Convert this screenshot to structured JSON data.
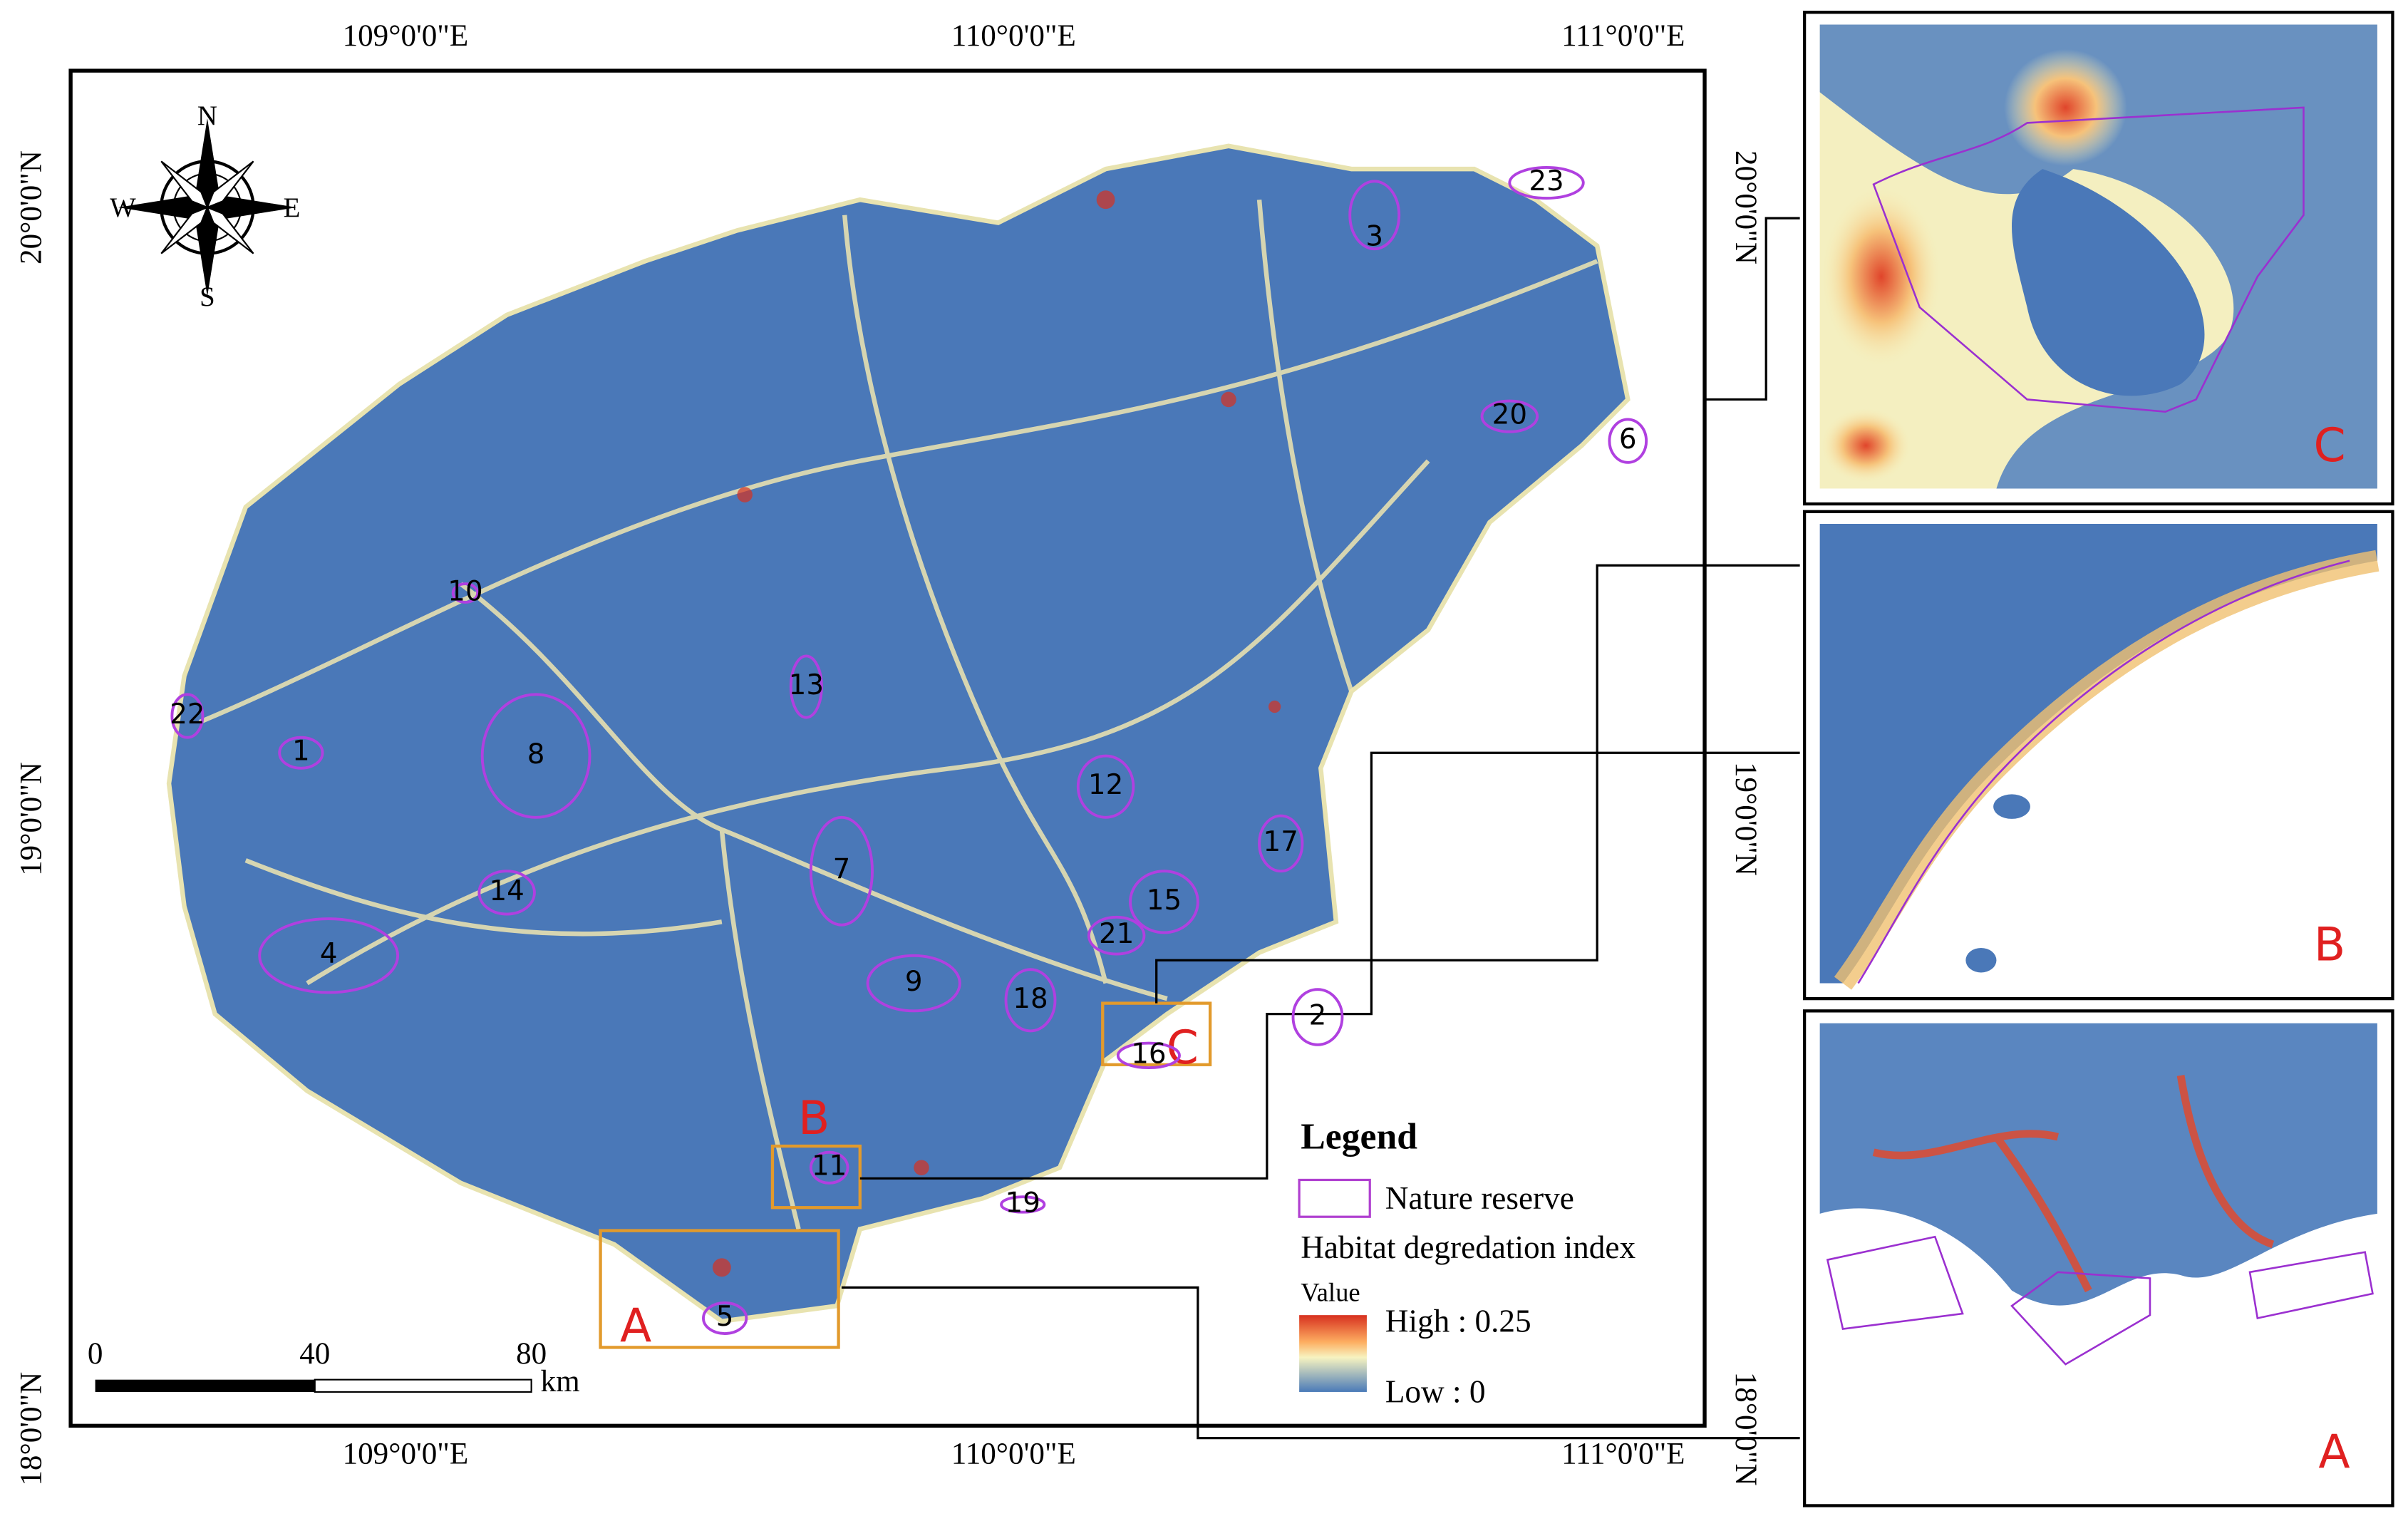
{
  "map": {
    "top_axis": [
      "109°0'0\"E",
      "110°0'0\"E",
      "111°0'0\"E"
    ],
    "bottom_axis": [
      "109°0'0\"E",
      "110°0'0\"E",
      "111°0'0\"E"
    ],
    "left_axis": [
      "20°0'0\"N",
      "19°0'0\"N",
      "18°0'0\"N"
    ],
    "right_axis": [
      "20°0'0\"N",
      "19°0'0\"N",
      "18°0'0\"N"
    ],
    "compass": {
      "n": "N",
      "s": "S",
      "e": "E",
      "w": "W"
    },
    "reserves": [
      "1",
      "2",
      "3",
      "4",
      "5",
      "6",
      "7",
      "8",
      "9",
      "10",
      "11",
      "12",
      "13",
      "14",
      "15",
      "16",
      "17",
      "18",
      "19",
      "20",
      "21",
      "22",
      "23"
    ],
    "zoom_boxes": [
      "A",
      "B",
      "C"
    ],
    "scale_bar": {
      "ticks": [
        "0",
        "40",
        "80"
      ],
      "unit": "km"
    },
    "legend": {
      "title": "Legend",
      "reserve": "Nature reserve",
      "index": "Habitat degredation index",
      "value": "Value",
      "high": "High : 0.25",
      "low": "Low : 0"
    }
  },
  "insets": [
    {
      "label": "C"
    },
    {
      "label": "B"
    },
    {
      "label": "A"
    }
  ]
}
